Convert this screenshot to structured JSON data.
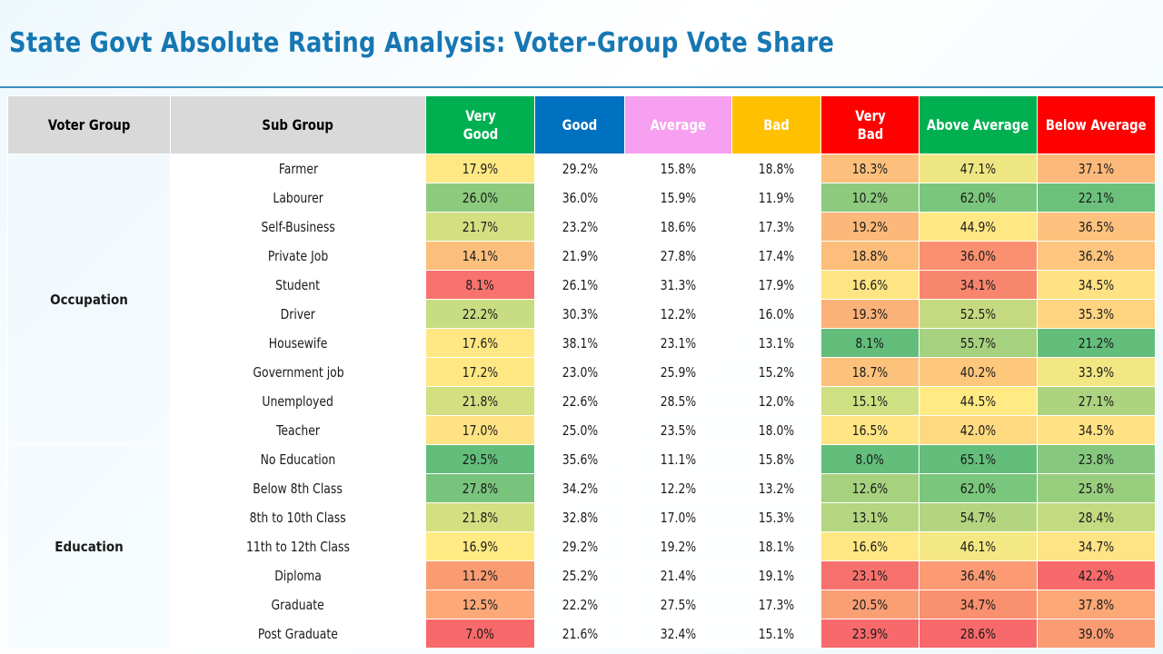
{
  "title": "State Govt Absolute Rating Analysis: Voter-Group Vote Share",
  "headers": [
    {
      "label": "Voter Group",
      "bg": "#d9d9d9",
      "fg": "#000000"
    },
    {
      "label": "Sub Group",
      "bg": "#d9d9d9",
      "fg": "#000000"
    },
    {
      "label": "Very Good",
      "bg": "#00b050",
      "fg": "#ffffff"
    },
    {
      "label": "Good",
      "bg": "#0070c0",
      "fg": "#ffffff"
    },
    {
      "label": "Average",
      "bg": "#f79ff0",
      "fg": "#ffffff"
    },
    {
      "label": "Bad",
      "bg": "#ffc000",
      "fg": "#ffffff"
    },
    {
      "label": "Very Bad",
      "bg": "#ff0000",
      "fg": "#ffffff"
    },
    {
      "label": "Above Average",
      "bg": "#00b050",
      "fg": "#ffffff"
    },
    {
      "label": "Below Average",
      "bg": "#ff0000",
      "fg": "#ffffff"
    }
  ],
  "groups": [
    {
      "name": "Occupation",
      "rows": [
        {
          "sub": "Farmer",
          "values": [
            "17.9%",
            "29.2%",
            "15.8%",
            "18.8%",
            "18.3%",
            "47.1%",
            "37.1%"
          ],
          "colors": {
            "very_good": "#fde883",
            "very_bad": "#fdc07c",
            "above_average": "#eee683",
            "below_average": "#fcb97a"
          }
        },
        {
          "sub": "Labourer",
          "values": [
            "26.0%",
            "36.0%",
            "15.9%",
            "11.9%",
            "10.2%",
            "62.0%",
            "22.1%"
          ],
          "colors": {
            "very_good": "#8ccb7e",
            "very_bad": "#8ccb7e",
            "above_average": "#7ac67c",
            "below_average": "#6bc17c"
          }
        },
        {
          "sub": "Self-Business",
          "values": [
            "21.7%",
            "23.2%",
            "18.6%",
            "17.3%",
            "19.2%",
            "44.9%",
            "36.5%"
          ],
          "colors": {
            "very_good": "#d4df81",
            "very_bad": "#fcb87a",
            "above_average": "#ffe884",
            "below_average": "#fdc27d"
          }
        },
        {
          "sub": "Private Job",
          "values": [
            "14.1%",
            "21.9%",
            "27.8%",
            "17.4%",
            "18.8%",
            "36.0%",
            "36.2%"
          ],
          "colors": {
            "very_good": "#fcbf7b",
            "very_bad": "#fdbe7b",
            "above_average": "#fa9070",
            "below_average": "#fdc57d"
          }
        },
        {
          "sub": "Student",
          "values": [
            "8.1%",
            "26.1%",
            "31.3%",
            "17.9%",
            "16.6%",
            "34.1%",
            "34.5%"
          ],
          "colors": {
            "very_good": "#f8736d",
            "very_bad": "#fee583",
            "above_average": "#f8866e",
            "below_average": "#ffe283"
          }
        },
        {
          "sub": "Driver",
          "values": [
            "22.2%",
            "30.3%",
            "12.2%",
            "16.0%",
            "19.3%",
            "52.5%",
            "35.3%"
          ],
          "colors": {
            "very_good": "#c8dc81",
            "very_bad": "#fbb279",
            "above_average": "#c5da80",
            "below_average": "#fed480"
          }
        },
        {
          "sub": "Housewife",
          "values": [
            "17.6%",
            "38.1%",
            "23.1%",
            "13.1%",
            "8.1%",
            "55.7%",
            "21.2%"
          ],
          "colors": {
            "very_good": "#ffe884",
            "very_bad": "#63be7b",
            "above_average": "#a6d17f",
            "below_average": "#63be7b"
          }
        },
        {
          "sub": "Government job",
          "values": [
            "17.2%",
            "23.0%",
            "25.9%",
            "15.2%",
            "18.7%",
            "40.2%",
            "33.9%"
          ],
          "colors": {
            "very_good": "#ffe784",
            "very_bad": "#fcc27c",
            "above_average": "#fdc77c",
            "below_average": "#f2e783"
          }
        },
        {
          "sub": "Unemployed",
          "values": [
            "21.8%",
            "22.6%",
            "28.5%",
            "12.0%",
            "15.1%",
            "44.5%",
            "27.1%"
          ],
          "colors": {
            "very_good": "#d3df81",
            "very_bad": "#cee082",
            "above_average": "#ffea84",
            "below_average": "#acd380"
          }
        },
        {
          "sub": "Teacher",
          "values": [
            "17.0%",
            "25.0%",
            "23.5%",
            "18.0%",
            "16.5%",
            "42.0%",
            "34.5%"
          ],
          "colors": {
            "very_good": "#ffe283",
            "very_bad": "#ffe584",
            "above_average": "#fed980",
            "below_average": "#ffe283"
          }
        }
      ]
    },
    {
      "name": "Education",
      "rows": [
        {
          "sub": "No Education",
          "values": [
            "29.5%",
            "35.6%",
            "11.1%",
            "15.8%",
            "8.0%",
            "65.1%",
            "23.8%"
          ],
          "colors": {
            "very_good": "#63be7b",
            "very_bad": "#63be7b",
            "above_average": "#63be7b",
            "below_average": "#86c97e"
          }
        },
        {
          "sub": "Below 8th Class",
          "values": [
            "27.8%",
            "34.2%",
            "12.2%",
            "13.2%",
            "12.6%",
            "62.0%",
            "25.8%"
          ],
          "colors": {
            "very_good": "#79c47d",
            "very_bad": "#a6d17f",
            "above_average": "#7ac67c",
            "below_average": "#9ace7f"
          }
        },
        {
          "sub": "8th to 10th Class",
          "values": [
            "21.8%",
            "32.8%",
            "17.0%",
            "15.3%",
            "13.1%",
            "54.7%",
            "28.4%"
          ],
          "colors": {
            "very_good": "#d3df81",
            "very_bad": "#b4d680",
            "above_average": "#b3d580",
            "below_average": "#c4da80"
          }
        },
        {
          "sub": "11th to 12th Class",
          "values": [
            "16.9%",
            "29.2%",
            "19.2%",
            "18.1%",
            "16.6%",
            "46.1%",
            "34.7%"
          ],
          "colors": {
            "very_good": "#ffea84",
            "very_bad": "#ffe884",
            "above_average": "#f4e884",
            "below_average": "#ffe484"
          }
        },
        {
          "sub": "Diploma",
          "values": [
            "11.2%",
            "25.2%",
            "21.4%",
            "19.1%",
            "23.1%",
            "36.4%",
            "42.2%"
          ],
          "colors": {
            "very_good": "#fa9c72",
            "very_bad": "#f8726d",
            "above_average": "#fc9b73",
            "below_average": "#f8696b"
          }
        },
        {
          "sub": "Graduate",
          "values": [
            "12.5%",
            "22.2%",
            "27.5%",
            "17.3%",
            "20.5%",
            "34.7%",
            "37.8%"
          ],
          "colors": {
            "very_good": "#fca977",
            "very_bad": "#fa9f74",
            "above_average": "#f9906f",
            "below_average": "#fba776"
          }
        },
        {
          "sub": "Post Graduate",
          "values": [
            "7.0%",
            "21.6%",
            "32.4%",
            "15.1%",
            "23.9%",
            "28.6%",
            "39.0%"
          ],
          "colors": {
            "very_good": "#f8696b",
            "very_bad": "#f8696b",
            "above_average": "#f8696b",
            "below_average": "#fa9b73"
          }
        }
      ]
    }
  ]
}
